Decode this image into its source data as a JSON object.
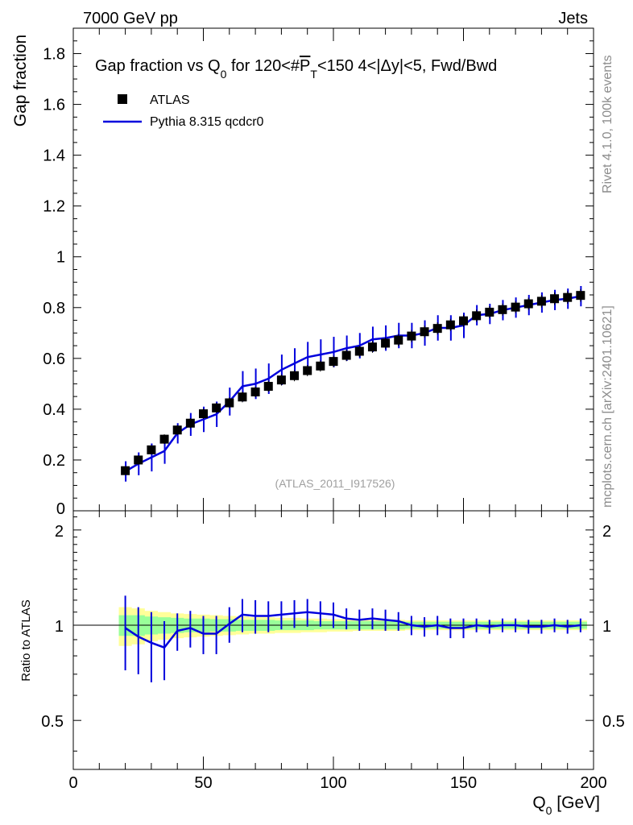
{
  "header": {
    "left": "7000 GeV pp",
    "right": "Jets"
  },
  "side_labels": {
    "top": "Rivet 4.1.0,  100k events",
    "bottom": "mcplots.cern.ch [arXiv:2401.10621]"
  },
  "colors": {
    "data": "#000000",
    "mc": "#0000dd",
    "band_inner": "#99ff99",
    "band_outer": "#ffff99",
    "watermark": "#a0a0a0"
  },
  "chart_data": [
    {
      "type": "scatter",
      "title_parts": {
        "prefix": "Gap fraction vs Q",
        "sub": "0",
        "middle": " for 120<#",
        "pt": "P",
        "pt_sub": "T",
        "suffix": "<150  4<|Δy|<5, Fwd/Bwd"
      },
      "ylabel": "Gap fraction",
      "watermark": "(ATLAS_2011_I917526)",
      "legend": {
        "data": "ATLAS",
        "mc": "Pythia 8.315 qcdcr0",
        "position": "top-left"
      },
      "xlim": [
        0,
        200
      ],
      "ylim": [
        0,
        1.9
      ],
      "yticks": [
        0.2,
        0.4,
        0.6,
        0.8,
        1,
        1.2,
        1.4,
        1.6,
        1.8
      ],
      "ytick_labels": [
        "0.2",
        "0.4",
        "0.6",
        "0.8",
        "1",
        "1.2",
        "1.4",
        "1.6",
        "1.8"
      ],
      "ytick_zero_label": "0",
      "x": [
        20,
        25,
        30,
        35,
        40,
        45,
        50,
        55,
        60,
        65,
        70,
        75,
        80,
        85,
        90,
        95,
        100,
        105,
        110,
        115,
        120,
        125,
        130,
        135,
        140,
        145,
        150,
        155,
        160,
        165,
        170,
        175,
        180,
        185,
        190,
        195
      ],
      "data": [
        0.158,
        0.2,
        0.24,
        0.282,
        0.318,
        0.345,
        0.382,
        0.405,
        0.425,
        0.448,
        0.468,
        0.49,
        0.515,
        0.532,
        0.552,
        0.57,
        0.588,
        0.612,
        0.628,
        0.645,
        0.66,
        0.672,
        0.688,
        0.705,
        0.718,
        0.732,
        0.748,
        0.768,
        0.782,
        0.792,
        0.802,
        0.815,
        0.825,
        0.835,
        0.84,
        0.848
      ],
      "data_err": [
        0.005,
        0.006,
        0.006,
        0.007,
        0.007,
        0.008,
        0.008,
        0.008,
        0.009,
        0.009,
        0.009,
        0.01,
        0.01,
        0.01,
        0.01,
        0.01,
        0.011,
        0.011,
        0.011,
        0.011,
        0.011,
        0.012,
        0.012,
        0.012,
        0.012,
        0.012,
        0.012,
        0.012,
        0.012,
        0.012,
        0.012,
        0.012,
        0.013,
        0.013,
        0.013,
        0.013
      ],
      "mc": [
        0.155,
        0.185,
        0.21,
        0.235,
        0.305,
        0.34,
        0.36,
        0.38,
        0.43,
        0.49,
        0.5,
        0.52,
        0.555,
        0.58,
        0.605,
        0.615,
        0.625,
        0.64,
        0.65,
        0.675,
        0.68,
        0.69,
        0.69,
        0.7,
        0.72,
        0.72,
        0.73,
        0.77,
        0.775,
        0.79,
        0.8,
        0.81,
        0.82,
        0.83,
        0.835,
        0.845
      ],
      "mc_err": [
        0.04,
        0.045,
        0.055,
        0.05,
        0.04,
        0.045,
        0.05,
        0.05,
        0.055,
        0.06,
        0.06,
        0.06,
        0.06,
        0.06,
        0.06,
        0.06,
        0.06,
        0.05,
        0.05,
        0.05,
        0.05,
        0.05,
        0.05,
        0.05,
        0.05,
        0.05,
        0.05,
        0.04,
        0.04,
        0.04,
        0.04,
        0.04,
        0.04,
        0.04,
        0.04,
        0.04
      ]
    },
    {
      "type": "line",
      "ylabel": "Ratio to ATLAS",
      "xlabel_parts": {
        "prefix": "Q",
        "sub": "0",
        "suffix": " [GeV]"
      },
      "xlim": [
        0,
        200
      ],
      "ylim": [
        0.35,
        2.3
      ],
      "yticks": [
        0.5,
        1,
        2
      ],
      "ytick_labels": [
        "0.5",
        "1",
        "2"
      ],
      "xticks": [
        0,
        50,
        100,
        150,
        200
      ],
      "xtick_labels": [
        "0",
        "50",
        "100",
        "150",
        "200"
      ],
      "x": [
        20,
        25,
        30,
        35,
        40,
        45,
        50,
        55,
        60,
        65,
        70,
        75,
        80,
        85,
        90,
        95,
        100,
        105,
        110,
        115,
        120,
        125,
        130,
        135,
        140,
        145,
        150,
        155,
        160,
        165,
        170,
        175,
        180,
        185,
        190,
        195
      ],
      "ratio": [
        0.98,
        0.92,
        0.88,
        0.85,
        0.96,
        0.98,
        0.94,
        0.94,
        1.01,
        1.08,
        1.07,
        1.07,
        1.08,
        1.09,
        1.1,
        1.09,
        1.08,
        1.05,
        1.04,
        1.05,
        1.04,
        1.03,
        1.0,
        0.99,
        1.0,
        0.98,
        0.98,
        1.0,
        0.99,
        1.0,
        1.0,
        0.99,
        0.99,
        1.0,
        0.99,
        1.0
      ],
      "ratio_err": [
        0.26,
        0.22,
        0.22,
        0.18,
        0.13,
        0.13,
        0.13,
        0.13,
        0.13,
        0.13,
        0.13,
        0.12,
        0.11,
        0.11,
        0.11,
        0.1,
        0.1,
        0.08,
        0.08,
        0.08,
        0.08,
        0.07,
        0.07,
        0.07,
        0.07,
        0.07,
        0.07,
        0.05,
        0.05,
        0.05,
        0.05,
        0.05,
        0.05,
        0.05,
        0.05,
        0.05
      ],
      "band_inner": [
        0.075,
        0.075,
        0.065,
        0.06,
        0.055,
        0.05,
        0.05,
        0.045,
        0.045,
        0.04,
        0.04,
        0.04,
        0.035,
        0.035,
        0.035,
        0.03,
        0.03,
        0.03,
        0.03,
        0.03,
        0.03,
        0.03,
        0.025,
        0.025,
        0.025,
        0.025,
        0.025,
        0.025,
        0.025,
        0.025,
        0.025,
        0.025,
        0.025,
        0.025,
        0.025,
        0.025
      ],
      "band_outer": [
        0.14,
        0.13,
        0.11,
        0.1,
        0.09,
        0.085,
        0.08,
        0.075,
        0.07,
        0.065,
        0.06,
        0.06,
        0.055,
        0.055,
        0.05,
        0.05,
        0.045,
        0.045,
        0.04,
        0.04,
        0.04,
        0.04,
        0.035,
        0.035,
        0.035,
        0.035,
        0.035,
        0.035,
        0.035,
        0.035,
        0.035,
        0.035,
        0.035,
        0.035,
        0.035,
        0.035
      ]
    }
  ]
}
